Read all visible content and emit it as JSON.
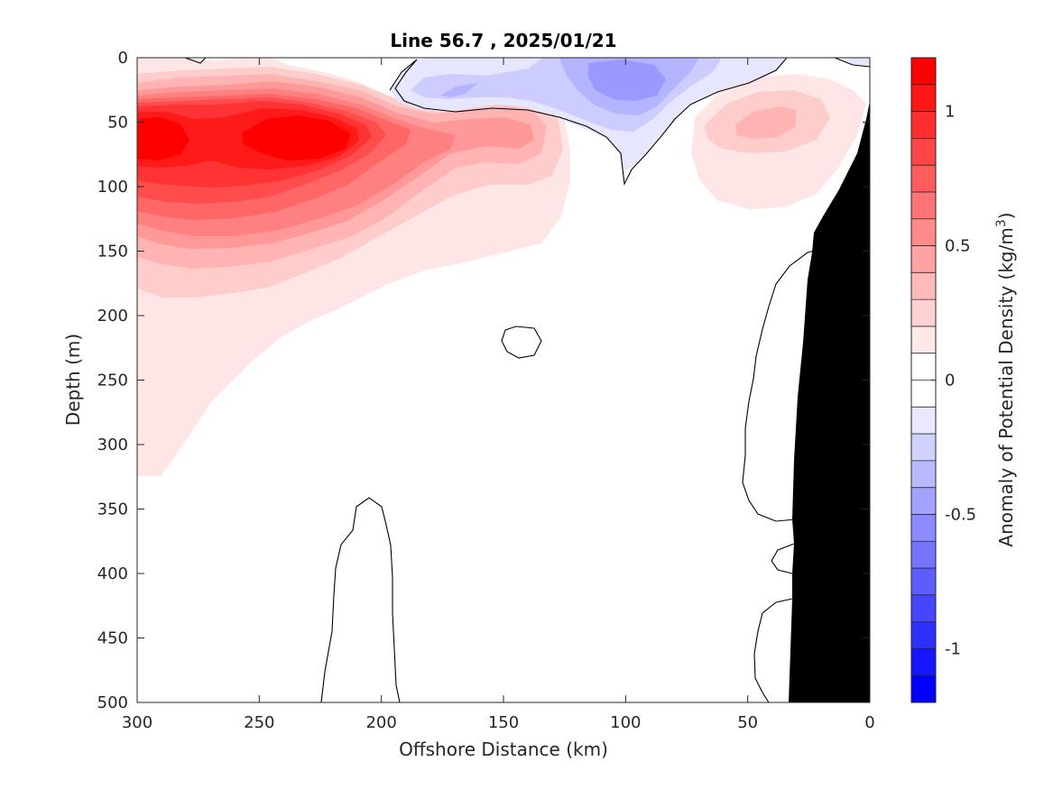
{
  "chart_data": {
    "type": "heatmap",
    "subtype": "filled-contour section",
    "title": "Line 56.7 , 2025/01/21",
    "xlabel": "Offshore Distance (km)",
    "ylabel": "Depth (m)",
    "xlim": [
      0,
      300
    ],
    "x_reversed": true,
    "ylim": [
      0,
      500
    ],
    "y_reversed": true,
    "xticks": [
      "300",
      "250",
      "200",
      "150",
      "100",
      "50",
      "0"
    ],
    "yticks": [
      "0",
      "50",
      "100",
      "150",
      "200",
      "250",
      "300",
      "350",
      "400",
      "450",
      "500"
    ],
    "colorbar": {
      "label": "Anomaly of Potential Density (kg/m",
      "label_superscript": "3",
      "label_close": ")",
      "clim": [
        -1.2,
        1.2
      ],
      "level_step": 0.1,
      "ticks": [
        "1",
        "0.5",
        "0",
        "-0.5",
        "-1"
      ],
      "tick_values": [
        1,
        0.5,
        0,
        -0.5,
        -1
      ]
    },
    "colors": {
      "positive": "#ff0000",
      "negative": "#0000ff",
      "zero": "#ffffff",
      "land": "#000000",
      "contour": "#000000"
    },
    "features": [
      {
        "name": "positive core",
        "x_km": 290,
        "depth_m": 60,
        "anomaly": 1.0
      },
      {
        "name": "positive core",
        "x_km": 230,
        "depth_m": 60,
        "anomaly": 1.0
      },
      {
        "name": "positive lobe",
        "x_km": 145,
        "depth_m": 60,
        "anomaly": 0.4
      },
      {
        "name": "positive lobe",
        "x_km": 45,
        "depth_m": 55,
        "anomaly": 0.3
      },
      {
        "name": "negative lens",
        "x_km": 105,
        "depth_m": 20,
        "anomaly": -0.3
      },
      {
        "name": "negative lens",
        "x_km": 165,
        "depth_m": 25,
        "anomaly": -0.2
      }
    ]
  }
}
